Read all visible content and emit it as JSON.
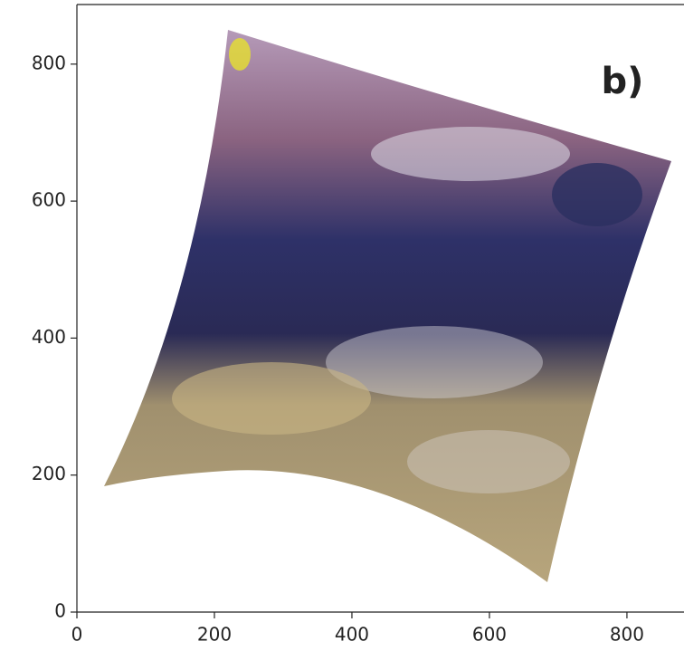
{
  "chart_data": {
    "type": "image",
    "annotation": "b)",
    "xlim": [
      0,
      883
    ],
    "ylim": [
      0,
      887
    ],
    "xticks": [
      0,
      200,
      400,
      600,
      800
    ],
    "yticks": [
      0,
      200,
      400,
      600,
      800
    ]
  }
}
